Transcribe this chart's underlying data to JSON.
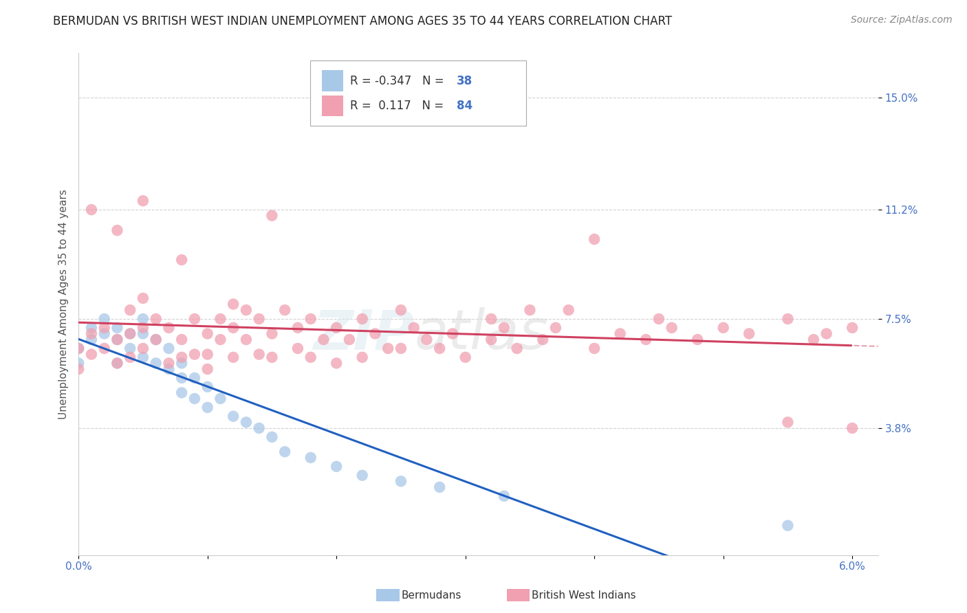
{
  "title": "BERMUDAN VS BRITISH WEST INDIAN UNEMPLOYMENT AMONG AGES 35 TO 44 YEARS CORRELATION CHART",
  "source": "Source: ZipAtlas.com",
  "ylabel": "Unemployment Among Ages 35 to 44 years",
  "xlim": [
    0.0,
    0.062
  ],
  "ylim": [
    -0.005,
    0.165
  ],
  "ytick_positions": [
    0.038,
    0.075,
    0.112,
    0.15
  ],
  "ytick_labels": [
    "3.8%",
    "7.5%",
    "11.2%",
    "15.0%"
  ],
  "xtick_positions": [
    0.0,
    0.01,
    0.02,
    0.03,
    0.04,
    0.05,
    0.06
  ],
  "xticklabels": [
    "0.0%",
    "",
    "",
    "",
    "",
    "",
    "6.0%"
  ],
  "grid_color": "#cccccc",
  "background_color": "#ffffff",
  "bermudan_color": "#a8c8e8",
  "bermudan_line_color": "#2060c0",
  "bwi_color": "#f0a0b0",
  "bwi_line_color": "#d04060",
  "tick_color": "#4472c4",
  "watermark_text": "ZIPatlas",
  "title_fontsize": 12,
  "tick_fontsize": 11,
  "bermudan_x": [
    0.0,
    0.0,
    0.001,
    0.001,
    0.002,
    0.002,
    0.003,
    0.003,
    0.003,
    0.004,
    0.004,
    0.005,
    0.005,
    0.005,
    0.006,
    0.006,
    0.007,
    0.007,
    0.008,
    0.008,
    0.008,
    0.009,
    0.009,
    0.01,
    0.01,
    0.011,
    0.012,
    0.013,
    0.014,
    0.015,
    0.016,
    0.018,
    0.02,
    0.022,
    0.025,
    0.028,
    0.033,
    0.055
  ],
  "bermudan_y": [
    0.065,
    0.06,
    0.072,
    0.068,
    0.075,
    0.07,
    0.072,
    0.068,
    0.06,
    0.07,
    0.065,
    0.075,
    0.07,
    0.062,
    0.068,
    0.06,
    0.065,
    0.058,
    0.06,
    0.055,
    0.05,
    0.055,
    0.048,
    0.052,
    0.045,
    0.048,
    0.042,
    0.04,
    0.038,
    0.035,
    0.03,
    0.028,
    0.025,
    0.022,
    0.02,
    0.018,
    0.015,
    0.005
  ],
  "bwi_x": [
    0.0,
    0.0,
    0.001,
    0.001,
    0.002,
    0.002,
    0.003,
    0.003,
    0.004,
    0.004,
    0.004,
    0.005,
    0.005,
    0.005,
    0.006,
    0.006,
    0.007,
    0.007,
    0.008,
    0.008,
    0.009,
    0.009,
    0.01,
    0.01,
    0.01,
    0.011,
    0.011,
    0.012,
    0.012,
    0.012,
    0.013,
    0.013,
    0.014,
    0.014,
    0.015,
    0.015,
    0.016,
    0.017,
    0.017,
    0.018,
    0.018,
    0.019,
    0.02,
    0.02,
    0.021,
    0.022,
    0.022,
    0.023,
    0.024,
    0.025,
    0.025,
    0.026,
    0.027,
    0.028,
    0.029,
    0.03,
    0.032,
    0.032,
    0.033,
    0.034,
    0.035,
    0.036,
    0.037,
    0.038,
    0.04,
    0.042,
    0.044,
    0.045,
    0.046,
    0.048,
    0.05,
    0.052,
    0.055,
    0.057,
    0.058,
    0.06,
    0.001,
    0.003,
    0.005,
    0.008,
    0.015,
    0.04,
    0.055,
    0.06
  ],
  "bwi_y": [
    0.065,
    0.058,
    0.07,
    0.063,
    0.072,
    0.065,
    0.068,
    0.06,
    0.078,
    0.07,
    0.062,
    0.082,
    0.072,
    0.065,
    0.075,
    0.068,
    0.072,
    0.06,
    0.068,
    0.062,
    0.075,
    0.063,
    0.07,
    0.063,
    0.058,
    0.075,
    0.068,
    0.08,
    0.072,
    0.062,
    0.078,
    0.068,
    0.075,
    0.063,
    0.07,
    0.062,
    0.078,
    0.072,
    0.065,
    0.075,
    0.062,
    0.068,
    0.072,
    0.06,
    0.068,
    0.075,
    0.062,
    0.07,
    0.065,
    0.078,
    0.065,
    0.072,
    0.068,
    0.065,
    0.07,
    0.062,
    0.075,
    0.068,
    0.072,
    0.065,
    0.078,
    0.068,
    0.072,
    0.078,
    0.065,
    0.07,
    0.068,
    0.075,
    0.072,
    0.068,
    0.072,
    0.07,
    0.075,
    0.068,
    0.07,
    0.072,
    0.112,
    0.105,
    0.115,
    0.095,
    0.11,
    0.102,
    0.04,
    0.038
  ]
}
